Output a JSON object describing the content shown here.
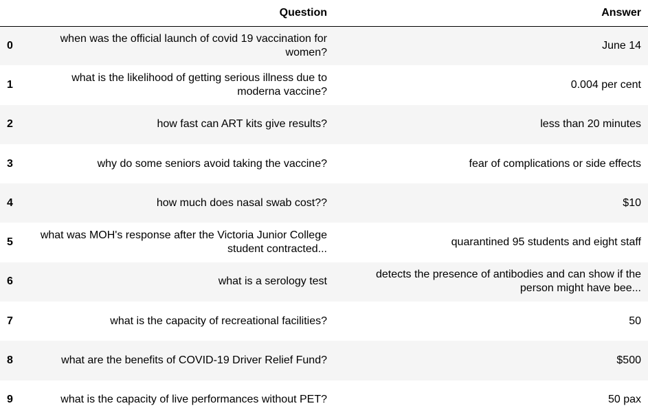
{
  "columns": {
    "index_header": "",
    "question": "Question",
    "answer": "Answer"
  },
  "rows": [
    {
      "index": "0",
      "question": "when was the official launch of covid 19 vaccination for women?",
      "answer": "June 14"
    },
    {
      "index": "1",
      "question": "what is the likelihood of getting serious illness due to moderna vaccine?",
      "answer": "0.004 per cent"
    },
    {
      "index": "2",
      "question": "how fast can ART kits give results?",
      "answer": "less than 20 minutes"
    },
    {
      "index": "3",
      "question": "why do some seniors avoid taking the vaccine?",
      "answer": "fear of complications or side effects"
    },
    {
      "index": "4",
      "question": "how much does nasal swab cost??",
      "answer": "$10"
    },
    {
      "index": "5",
      "question": "what was MOH's response after the Victoria Junior College student contracted...",
      "answer": "quarantined 95 students and eight staff"
    },
    {
      "index": "6",
      "question": "what is a serology test",
      "answer": "detects the presence of antibodies and can show if the person might have bee..."
    },
    {
      "index": "7",
      "question": "what is the capacity of recreational facilities?",
      "answer": "50"
    },
    {
      "index": "8",
      "question": "what are the benefits of COVID-19 Driver Relief Fund?",
      "answer": "$500"
    },
    {
      "index": "9",
      "question": "what is the capacity of live performances without PET?",
      "answer": "50 pax"
    }
  ]
}
